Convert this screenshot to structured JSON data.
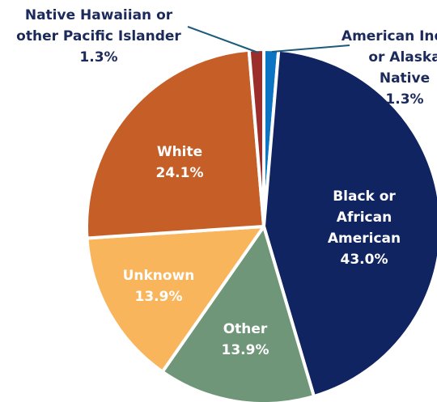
{
  "chart_data": {
    "type": "pie",
    "title": "",
    "slices": [
      {
        "lines": [
          "American Indian",
          "or Alaska",
          "Native",
          "1.3%"
        ],
        "value": 1.3,
        "color": "#0b74c3",
        "label_color": "#1b2a5a"
      },
      {
        "lines": [
          "Black or",
          "African",
          "American",
          "43.0%"
        ],
        "value": 43.0,
        "color": "#0f2461",
        "label_color": "#ffffff"
      },
      {
        "lines": [
          "Other",
          "13.9%"
        ],
        "value": 13.9,
        "color": "#6f9679",
        "label_color": "#ffffff"
      },
      {
        "lines": [
          "Unknown",
          "13.9%"
        ],
        "value": 13.9,
        "color": "#f9b55c",
        "label_color": "#ffffff"
      },
      {
        "lines": [
          "White",
          "24.1%"
        ],
        "value": 24.1,
        "color": "#c65e27",
        "label_color": "#ffffff"
      },
      {
        "lines": [
          "Native Hawaiian or",
          "other Pacific Islander",
          "1.3%"
        ],
        "value": 1.3,
        "color": "#9b2e2a",
        "label_color": "#1b2a5a"
      }
    ]
  }
}
